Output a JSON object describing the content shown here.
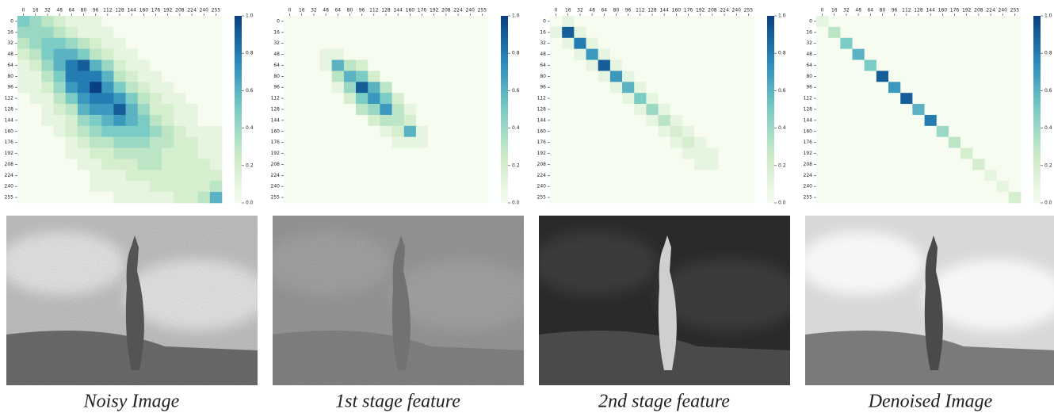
{
  "chart_data": [
    {
      "type": "heatmap",
      "colormap": "GnBu",
      "categories": [
        "0",
        "16",
        "32",
        "48",
        "64",
        "80",
        "96",
        "112",
        "128",
        "144",
        "160",
        "176",
        "192",
        "208",
        "224",
        "240",
        "255"
      ],
      "clim": [
        0,
        1
      ],
      "cticks": [
        {
          "value": 0,
          "label": "0.0"
        },
        0.2,
        0.4,
        0.6,
        0.8,
        {
          "value": 1,
          "label": "1.0"
        }
      ],
      "values": [
        [
          0.5,
          0.4,
          0.3,
          0.2,
          0.1,
          0.1,
          0.1,
          0,
          0,
          0,
          0,
          0,
          0,
          0,
          0,
          0,
          0
        ],
        [
          0.4,
          0.4,
          0.4,
          0.3,
          0.2,
          0.1,
          0.1,
          0.1,
          0,
          0,
          0,
          0,
          0,
          0,
          0,
          0,
          0
        ],
        [
          0.3,
          0.4,
          0.5,
          0.5,
          0.4,
          0.3,
          0.2,
          0.1,
          0.1,
          0,
          0,
          0,
          0,
          0,
          0,
          0,
          0
        ],
        [
          0.2,
          0.3,
          0.5,
          0.6,
          0.6,
          0.5,
          0.3,
          0.2,
          0.1,
          0.1,
          0,
          0,
          0,
          0,
          0,
          0,
          0
        ],
        [
          0.1,
          0.2,
          0.4,
          0.6,
          0.8,
          0.9,
          0.6,
          0.4,
          0.2,
          0.1,
          0.1,
          0,
          0,
          0,
          0,
          0,
          0
        ],
        [
          0.1,
          0.1,
          0.3,
          0.5,
          0.8,
          0.8,
          0.8,
          0.6,
          0.3,
          0.2,
          0.1,
          0.1,
          0,
          0,
          0,
          0,
          0
        ],
        [
          0.1,
          0.1,
          0.2,
          0.4,
          0.7,
          0.8,
          1.0,
          0.7,
          0.5,
          0.3,
          0.2,
          0.1,
          0.1,
          0,
          0,
          0,
          0
        ],
        [
          0,
          0.1,
          0.1,
          0.3,
          0.5,
          0.7,
          0.8,
          0.8,
          0.7,
          0.5,
          0.3,
          0.2,
          0.1,
          0.1,
          0,
          0,
          0
        ],
        [
          0,
          0,
          0.1,
          0.2,
          0.3,
          0.6,
          0.7,
          0.7,
          0.9,
          0.6,
          0.4,
          0.2,
          0.2,
          0.1,
          0.1,
          0,
          0
        ],
        [
          0,
          0,
          0.1,
          0.1,
          0.2,
          0.4,
          0.5,
          0.6,
          0.7,
          0.6,
          0.5,
          0.3,
          0.2,
          0.1,
          0.1,
          0,
          0
        ],
        [
          0,
          0,
          0,
          0.1,
          0.2,
          0.3,
          0.4,
          0.5,
          0.5,
          0.5,
          0.5,
          0.4,
          0.3,
          0.2,
          0.1,
          0.1,
          0.1
        ],
        [
          0,
          0,
          0,
          0,
          0.1,
          0.2,
          0.3,
          0.3,
          0.4,
          0.4,
          0.4,
          0.3,
          0.3,
          0.2,
          0.2,
          0.1,
          0.1
        ],
        [
          0,
          0,
          0,
          0,
          0.1,
          0.1,
          0.2,
          0.2,
          0.3,
          0.3,
          0.3,
          0.3,
          0.2,
          0.2,
          0.2,
          0.1,
          0.1
        ],
        [
          0,
          0,
          0,
          0,
          0,
          0.1,
          0.1,
          0.2,
          0.2,
          0.2,
          0.3,
          0.3,
          0.2,
          0.2,
          0.2,
          0.2,
          0.1
        ],
        [
          0,
          0,
          0,
          0,
          0,
          0,
          0.1,
          0.1,
          0.1,
          0.2,
          0.2,
          0.2,
          0.2,
          0.2,
          0.2,
          0.2,
          0.2
        ],
        [
          0,
          0,
          0,
          0,
          0,
          0,
          0.1,
          0.1,
          0.1,
          0.1,
          0.1,
          0.2,
          0.2,
          0.2,
          0.2,
          0.2,
          0.3
        ],
        [
          0,
          0,
          0,
          0,
          0,
          0,
          0,
          0,
          0.1,
          0.1,
          0.1,
          0.1,
          0.1,
          0.2,
          0.2,
          0.3,
          0.6
        ]
      ]
    },
    {
      "type": "heatmap",
      "colormap": "GnBu",
      "categories": [
        "0",
        "16",
        "32",
        "48",
        "64",
        "80",
        "96",
        "112",
        "128",
        "144",
        "160",
        "176",
        "192",
        "208",
        "224",
        "240",
        "255"
      ],
      "clim": [
        0,
        1
      ],
      "cticks": [
        {
          "value": 0,
          "label": "0.0"
        },
        0.2,
        0.4,
        0.6,
        0.8,
        {
          "value": 1,
          "label": "1.0"
        }
      ],
      "values": [
        [
          0,
          0,
          0,
          0,
          0,
          0,
          0,
          0,
          0,
          0,
          0,
          0,
          0,
          0,
          0,
          0,
          0
        ],
        [
          0,
          0,
          0,
          0,
          0,
          0,
          0,
          0,
          0,
          0,
          0,
          0,
          0,
          0,
          0,
          0,
          0
        ],
        [
          0,
          0,
          0,
          0,
          0,
          0,
          0,
          0,
          0,
          0,
          0,
          0,
          0,
          0,
          0,
          0,
          0
        ],
        [
          0,
          0,
          0,
          0.1,
          0.1,
          0,
          0,
          0,
          0,
          0,
          0,
          0,
          0,
          0,
          0,
          0,
          0
        ],
        [
          0,
          0,
          0,
          0.1,
          0.6,
          0.3,
          0.2,
          0,
          0,
          0,
          0,
          0,
          0,
          0,
          0,
          0,
          0
        ],
        [
          0,
          0,
          0,
          0,
          0.3,
          0.6,
          0.5,
          0.2,
          0,
          0,
          0,
          0,
          0,
          0,
          0,
          0,
          0
        ],
        [
          0,
          0,
          0,
          0,
          0.1,
          0.4,
          0.9,
          0.6,
          0.3,
          0,
          0,
          0,
          0,
          0,
          0,
          0,
          0
        ],
        [
          0,
          0,
          0,
          0,
          0,
          0.2,
          0.5,
          0.7,
          0.5,
          0.2,
          0,
          0,
          0,
          0,
          0,
          0,
          0
        ],
        [
          0,
          0,
          0,
          0,
          0,
          0,
          0.3,
          0.4,
          0.7,
          0.3,
          0.1,
          0,
          0,
          0,
          0,
          0,
          0
        ],
        [
          0,
          0,
          0,
          0,
          0,
          0,
          0,
          0.2,
          0.3,
          0.3,
          0.2,
          0,
          0,
          0,
          0,
          0,
          0
        ],
        [
          0,
          0,
          0,
          0,
          0,
          0,
          0,
          0,
          0.1,
          0.2,
          0.6,
          0.1,
          0,
          0,
          0,
          0,
          0
        ],
        [
          0,
          0,
          0,
          0,
          0,
          0,
          0,
          0,
          0,
          0.1,
          0.1,
          0.1,
          0,
          0,
          0,
          0,
          0
        ],
        [
          0,
          0,
          0,
          0,
          0,
          0,
          0,
          0,
          0,
          0,
          0,
          0,
          0,
          0,
          0,
          0,
          0
        ],
        [
          0,
          0,
          0,
          0,
          0,
          0,
          0,
          0,
          0,
          0,
          0,
          0,
          0,
          0,
          0,
          0,
          0
        ],
        [
          0,
          0,
          0,
          0,
          0,
          0,
          0,
          0,
          0,
          0,
          0,
          0,
          0,
          0,
          0,
          0,
          0
        ],
        [
          0,
          0,
          0,
          0,
          0,
          0,
          0,
          0,
          0,
          0,
          0,
          0,
          0,
          0,
          0,
          0,
          0
        ],
        [
          0,
          0,
          0,
          0,
          0,
          0,
          0,
          0,
          0,
          0,
          0,
          0,
          0,
          0,
          0,
          0,
          0
        ]
      ]
    },
    {
      "type": "heatmap",
      "colormap": "GnBu",
      "categories": [
        "0",
        "16",
        "32",
        "48",
        "64",
        "80",
        "96",
        "112",
        "128",
        "144",
        "160",
        "176",
        "192",
        "208",
        "224",
        "240",
        "255"
      ],
      "clim": [
        0,
        1
      ],
      "cticks": [
        {
          "value": 0,
          "label": "0.0"
        },
        0.2,
        0.4,
        0.6,
        0.8,
        {
          "value": 1,
          "label": "1.0"
        }
      ],
      "values": [
        [
          0,
          0.1,
          0,
          0,
          0,
          0,
          0,
          0,
          0,
          0,
          0,
          0,
          0,
          0,
          0,
          0,
          0
        ],
        [
          0.1,
          0.9,
          0.1,
          0,
          0,
          0,
          0,
          0,
          0,
          0,
          0,
          0,
          0,
          0,
          0,
          0,
          0
        ],
        [
          0,
          0.1,
          0.8,
          0.1,
          0,
          0,
          0,
          0,
          0,
          0,
          0,
          0,
          0,
          0,
          0,
          0,
          0
        ],
        [
          0,
          0,
          0.1,
          0.7,
          0.1,
          0,
          0,
          0,
          0,
          0,
          0,
          0,
          0,
          0,
          0,
          0,
          0
        ],
        [
          0,
          0,
          0,
          0.1,
          0.9,
          0.1,
          0,
          0,
          0,
          0,
          0,
          0,
          0,
          0,
          0,
          0,
          0
        ],
        [
          0,
          0,
          0,
          0,
          0.1,
          0.7,
          0.1,
          0,
          0,
          0,
          0,
          0,
          0,
          0,
          0,
          0,
          0
        ],
        [
          0,
          0,
          0,
          0,
          0,
          0.1,
          0.6,
          0.1,
          0,
          0,
          0,
          0,
          0,
          0,
          0,
          0,
          0
        ],
        [
          0,
          0,
          0,
          0,
          0,
          0,
          0.1,
          0.5,
          0.1,
          0,
          0,
          0,
          0,
          0,
          0,
          0,
          0
        ],
        [
          0,
          0,
          0,
          0,
          0,
          0,
          0,
          0.1,
          0.4,
          0.1,
          0,
          0,
          0,
          0,
          0,
          0,
          0
        ],
        [
          0,
          0,
          0,
          0,
          0,
          0,
          0,
          0,
          0.1,
          0.3,
          0.1,
          0,
          0,
          0,
          0,
          0,
          0
        ],
        [
          0,
          0,
          0,
          0,
          0,
          0,
          0,
          0,
          0,
          0.1,
          0.2,
          0.1,
          0,
          0,
          0,
          0,
          0
        ],
        [
          0,
          0,
          0,
          0,
          0,
          0,
          0,
          0,
          0,
          0,
          0.1,
          0.2,
          0.1,
          0,
          0,
          0,
          0
        ],
        [
          0,
          0,
          0,
          0,
          0,
          0,
          0,
          0,
          0,
          0,
          0,
          0.1,
          0.1,
          0.1,
          0,
          0,
          0
        ],
        [
          0,
          0,
          0,
          0,
          0,
          0,
          0,
          0,
          0,
          0,
          0,
          0,
          0.1,
          0.1,
          0,
          0,
          0
        ],
        [
          0,
          0,
          0,
          0,
          0,
          0,
          0,
          0,
          0,
          0,
          0,
          0,
          0,
          0,
          0,
          0,
          0
        ],
        [
          0,
          0,
          0,
          0,
          0,
          0,
          0,
          0,
          0,
          0,
          0,
          0,
          0,
          0,
          0,
          0,
          0
        ],
        [
          0,
          0,
          0,
          0,
          0,
          0,
          0,
          0,
          0,
          0,
          0,
          0,
          0,
          0,
          0,
          0,
          0
        ]
      ]
    },
    {
      "type": "heatmap",
      "colormap": "GnBu",
      "categories": [
        "0",
        "16",
        "32",
        "48",
        "64",
        "80",
        "96",
        "112",
        "128",
        "144",
        "160",
        "176",
        "192",
        "208",
        "224",
        "240",
        "255"
      ],
      "clim": [
        0,
        1
      ],
      "cticks": [
        {
          "value": 0,
          "label": "0.0"
        },
        0.2,
        0.4,
        0.6,
        0.8,
        {
          "value": 1,
          "label": "1.0"
        }
      ],
      "values": [
        [
          0.1,
          0,
          0,
          0,
          0,
          0,
          0,
          0,
          0,
          0,
          0,
          0,
          0,
          0,
          0,
          0,
          0
        ],
        [
          0,
          0.3,
          0,
          0,
          0,
          0,
          0,
          0,
          0,
          0,
          0,
          0,
          0,
          0,
          0,
          0,
          0
        ],
        [
          0,
          0,
          0.5,
          0,
          0,
          0,
          0,
          0,
          0,
          0,
          0,
          0,
          0,
          0,
          0,
          0,
          0
        ],
        [
          0,
          0,
          0,
          0.6,
          0,
          0,
          0,
          0,
          0,
          0,
          0,
          0,
          0,
          0,
          0,
          0,
          0
        ],
        [
          0,
          0,
          0,
          0,
          0.5,
          0,
          0,
          0,
          0,
          0,
          0,
          0,
          0,
          0,
          0,
          0,
          0
        ],
        [
          0,
          0,
          0,
          0,
          0,
          0.9,
          0,
          0,
          0,
          0,
          0,
          0,
          0,
          0,
          0,
          0,
          0
        ],
        [
          0,
          0,
          0,
          0,
          0,
          0,
          0.7,
          0,
          0,
          0,
          0,
          0,
          0,
          0,
          0,
          0,
          0
        ],
        [
          0,
          0,
          0,
          0,
          0,
          0,
          0,
          0.9,
          0,
          0,
          0,
          0,
          0,
          0,
          0,
          0,
          0
        ],
        [
          0,
          0,
          0,
          0,
          0,
          0,
          0,
          0,
          0.6,
          0,
          0,
          0,
          0,
          0,
          0,
          0,
          0
        ],
        [
          0,
          0,
          0,
          0,
          0,
          0,
          0,
          0,
          0,
          0.8,
          0,
          0,
          0,
          0,
          0,
          0,
          0
        ],
        [
          0,
          0,
          0,
          0,
          0,
          0,
          0,
          0,
          0,
          0,
          0.4,
          0,
          0,
          0,
          0,
          0,
          0
        ],
        [
          0,
          0,
          0,
          0,
          0,
          0,
          0,
          0,
          0,
          0,
          0,
          0.3,
          0,
          0,
          0,
          0,
          0
        ],
        [
          0,
          0,
          0,
          0,
          0,
          0,
          0,
          0,
          0,
          0,
          0,
          0,
          0.2,
          0,
          0,
          0,
          0
        ],
        [
          0,
          0,
          0,
          0,
          0,
          0,
          0,
          0,
          0,
          0,
          0,
          0,
          0,
          0.2,
          0,
          0,
          0
        ],
        [
          0,
          0,
          0,
          0,
          0,
          0,
          0,
          0,
          0,
          0,
          0,
          0,
          0,
          0,
          0.1,
          0,
          0
        ],
        [
          0,
          0,
          0,
          0,
          0,
          0,
          0,
          0,
          0,
          0,
          0,
          0,
          0,
          0,
          0,
          0.1,
          0
        ],
        [
          0,
          0,
          0,
          0,
          0,
          0,
          0,
          0,
          0,
          0,
          0,
          0,
          0,
          0,
          0,
          0,
          0.2
        ]
      ]
    }
  ],
  "captions": [
    "Noisy Image",
    "1st stage feature",
    "2nd stage feature",
    "Denoised Image"
  ]
}
